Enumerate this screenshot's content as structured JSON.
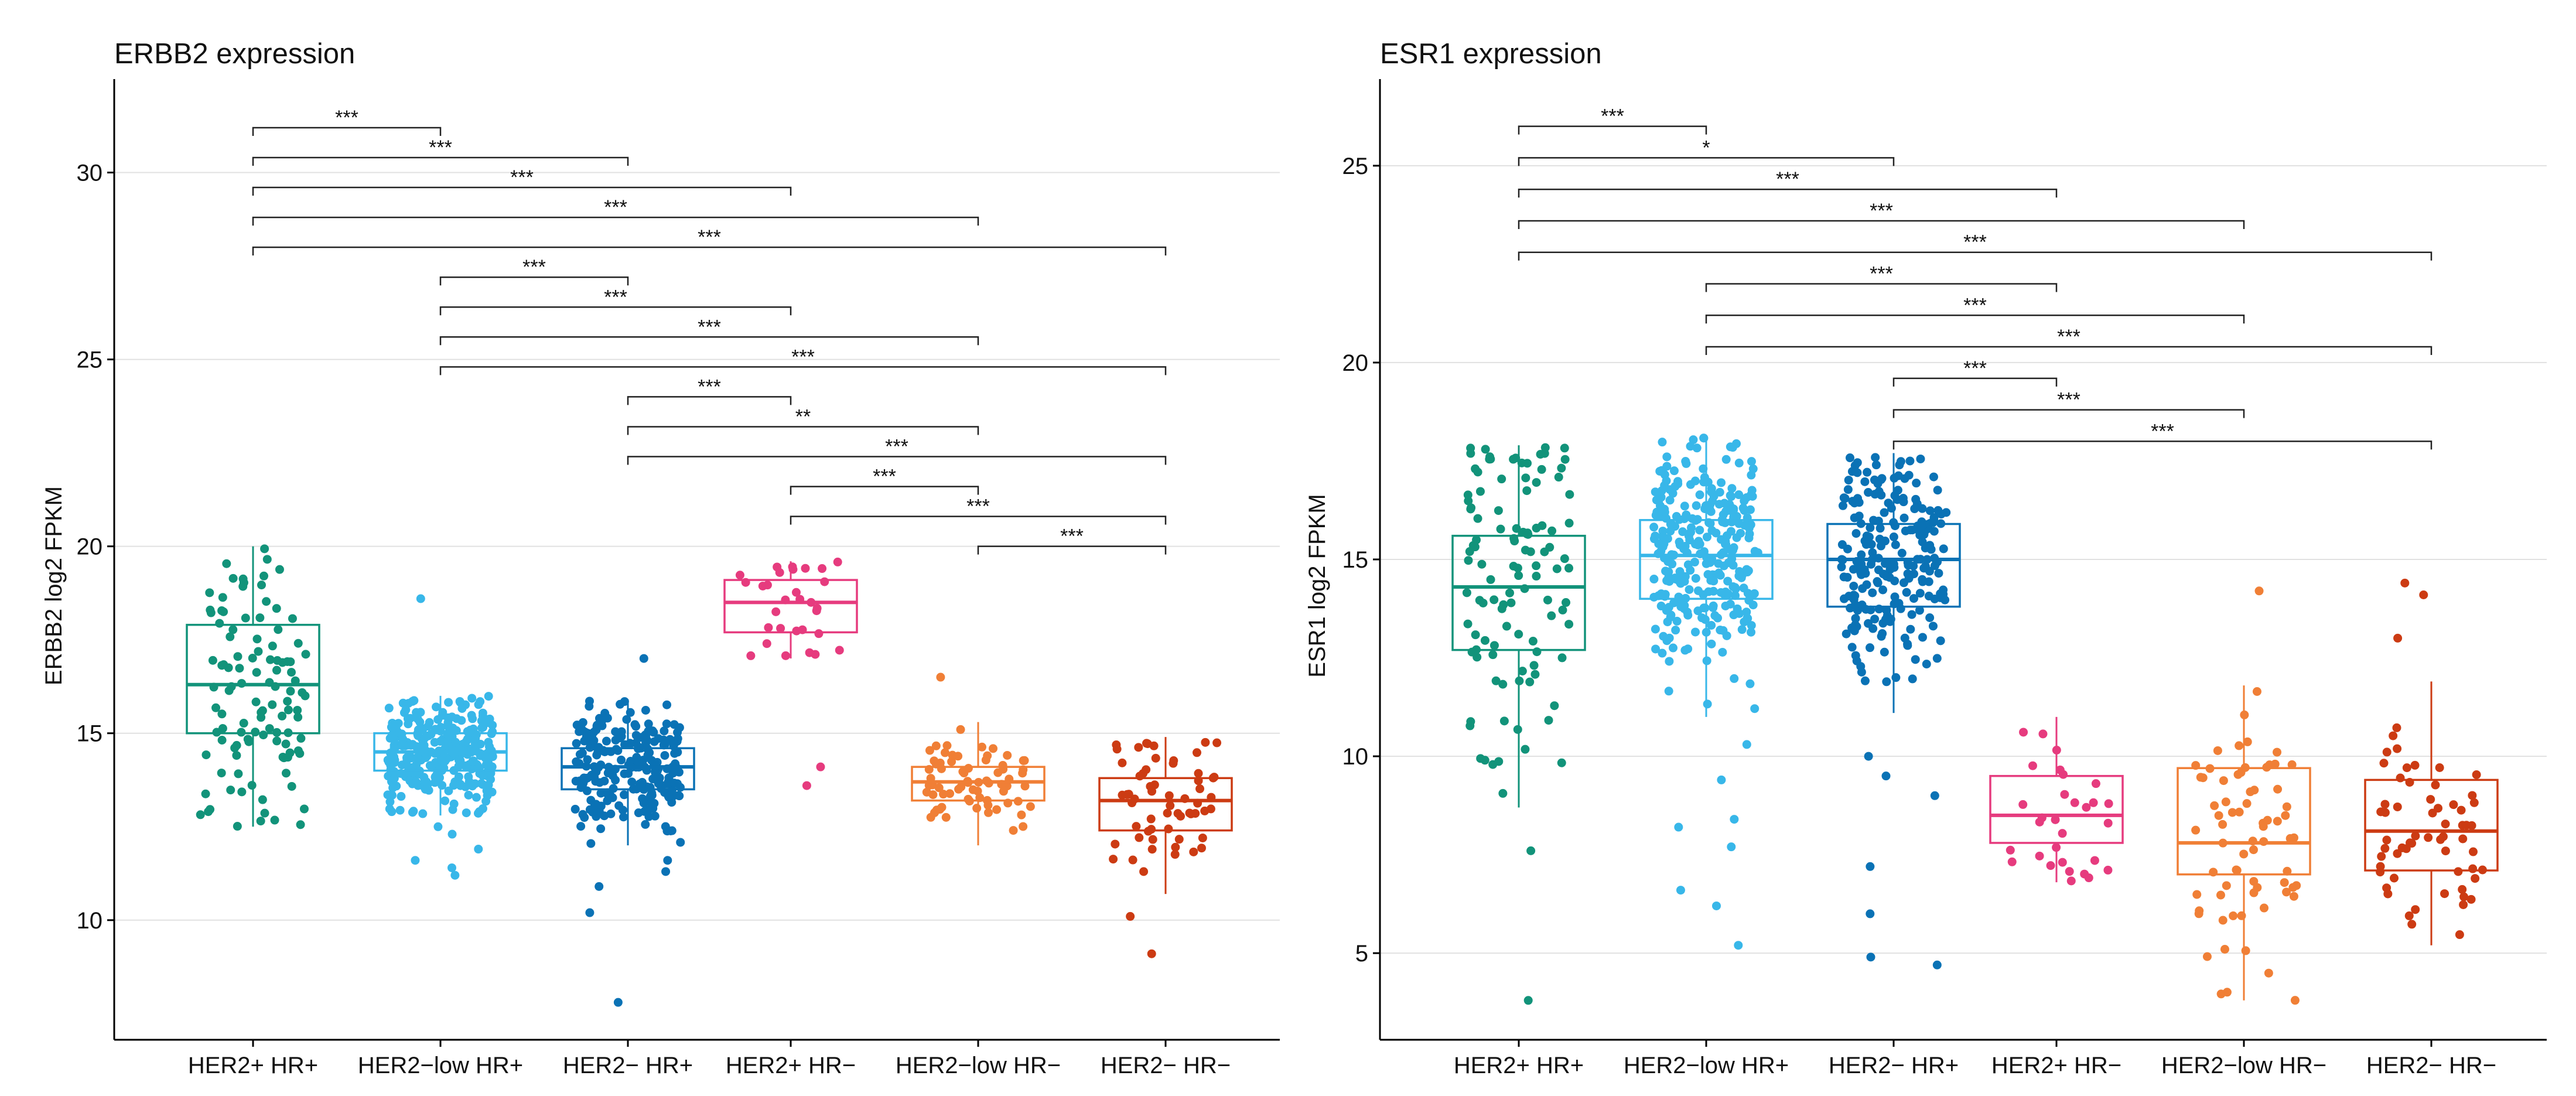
{
  "chart_data": [
    {
      "type": "box",
      "title": "ERBB2 expression",
      "ylabel": "ERBB2 log2 FPKM",
      "ylim": [
        6.8,
        32.5
      ],
      "yticks": [
        10,
        15,
        20,
        25,
        30
      ],
      "categories": [
        "HER2+ HR+",
        "HER2−low HR+",
        "HER2− HR+",
        "HER2+ HR−",
        "HER2−low HR−",
        "HER2− HR−"
      ],
      "colors": [
        "#12937a",
        "#38b7e9",
        "#0a72b5",
        "#e63b7e",
        "#f07f36",
        "#cc3b13"
      ],
      "boxes": [
        {
          "q1": 15.0,
          "median": 16.3,
          "q3": 17.9,
          "whisker_low": 12.5,
          "whisker_high": 20.0,
          "outliers": [],
          "n": 110
        },
        {
          "q1": 14.0,
          "median": 14.5,
          "q3": 15.0,
          "whisker_low": 12.8,
          "whisker_high": 16.0,
          "outliers": [
            18.6,
            12.5,
            12.3,
            11.9,
            11.6,
            11.4,
            11.2
          ],
          "n": 300
        },
        {
          "q1": 13.5,
          "median": 14.1,
          "q3": 14.6,
          "whisker_low": 12.0,
          "whisker_high": 15.9,
          "outliers": [
            17.0,
            11.6,
            11.3,
            10.9,
            10.2,
            7.8
          ],
          "n": 230
        },
        {
          "q1": 17.7,
          "median": 18.5,
          "q3": 19.1,
          "whisker_low": 17.0,
          "whisker_high": 19.6,
          "outliers": [
            14.1,
            13.6
          ],
          "n": 30
        },
        {
          "q1": 13.2,
          "median": 13.7,
          "q3": 14.1,
          "whisker_low": 12.0,
          "whisker_high": 15.3,
          "outliers": [
            16.5
          ],
          "n": 70
        },
        {
          "q1": 12.4,
          "median": 13.2,
          "q3": 13.8,
          "whisker_low": 10.7,
          "whisker_high": 14.9,
          "outliers": [
            10.1,
            9.1
          ],
          "n": 60
        }
      ],
      "comparisons": [
        {
          "from": 0,
          "to": 1,
          "y": 31.2,
          "label": "***"
        },
        {
          "from": 0,
          "to": 2,
          "y": 30.4,
          "label": "***"
        },
        {
          "from": 0,
          "to": 3,
          "y": 29.6,
          "label": "***"
        },
        {
          "from": 0,
          "to": 4,
          "y": 28.8,
          "label": "***"
        },
        {
          "from": 0,
          "to": 5,
          "y": 28.0,
          "label": "***"
        },
        {
          "from": 1,
          "to": 2,
          "y": 27.2,
          "label": "***"
        },
        {
          "from": 1,
          "to": 3,
          "y": 26.4,
          "label": "***"
        },
        {
          "from": 1,
          "to": 4,
          "y": 25.6,
          "label": "***"
        },
        {
          "from": 1,
          "to": 5,
          "y": 24.8,
          "label": "***"
        },
        {
          "from": 2,
          "to": 3,
          "y": 24.0,
          "label": "***"
        },
        {
          "from": 2,
          "to": 4,
          "y": 23.2,
          "label": "**"
        },
        {
          "from": 2,
          "to": 5,
          "y": 22.4,
          "label": "***"
        },
        {
          "from": 3,
          "to": 4,
          "y": 21.6,
          "label": "***"
        },
        {
          "from": 3,
          "to": 5,
          "y": 20.8,
          "label": "***"
        },
        {
          "from": 4,
          "to": 5,
          "y": 20.0,
          "label": "***"
        }
      ]
    },
    {
      "type": "box",
      "title": "ESR1 expression",
      "ylabel": "ESR1 log2 FPKM",
      "ylim": [
        2.8,
        27.2
      ],
      "yticks": [
        5,
        10,
        15,
        20,
        25
      ],
      "categories": [
        "HER2+ HR+",
        "HER2−low HR+",
        "HER2− HR+",
        "HER2+ HR−",
        "HER2−low HR−",
        "HER2− HR−"
      ],
      "colors": [
        "#12937a",
        "#38b7e9",
        "#0a72b5",
        "#e63b7e",
        "#f07f36",
        "#cc3b13"
      ],
      "boxes": [
        {
          "q1": 12.7,
          "median": 14.3,
          "q3": 15.6,
          "whisker_low": 8.7,
          "whisker_high": 17.9,
          "outliers": [
            7.6,
            3.8
          ],
          "n": 110
        },
        {
          "q1": 14.0,
          "median": 15.1,
          "q3": 16.0,
          "whisker_low": 11.0,
          "whisker_high": 18.1,
          "outliers": [
            10.3,
            9.4,
            8.4,
            8.2,
            7.7,
            6.6,
            6.2,
            5.2
          ],
          "n": 300
        },
        {
          "q1": 13.8,
          "median": 15.0,
          "q3": 15.9,
          "whisker_low": 11.1,
          "whisker_high": 17.7,
          "outliers": [
            10.0,
            9.5,
            9.0,
            7.2,
            6.0,
            4.9,
            4.7
          ],
          "n": 230
        },
        {
          "q1": 7.8,
          "median": 8.5,
          "q3": 9.5,
          "whisker_low": 6.8,
          "whisker_high": 11.0,
          "outliers": [],
          "n": 30
        },
        {
          "q1": 7.0,
          "median": 7.8,
          "q3": 9.7,
          "whisker_low": 3.8,
          "whisker_high": 11.8,
          "outliers": [
            14.2
          ],
          "n": 70
        },
        {
          "q1": 7.1,
          "median": 8.1,
          "q3": 9.4,
          "whisker_low": 5.2,
          "whisker_high": 11.9,
          "outliers": [
            14.4,
            14.1,
            13.0
          ],
          "n": 60
        }
      ],
      "comparisons": [
        {
          "from": 0,
          "to": 1,
          "y": 26.0,
          "label": "***"
        },
        {
          "from": 0,
          "to": 2,
          "y": 25.2,
          "label": "*"
        },
        {
          "from": 0,
          "to": 3,
          "y": 24.4,
          "label": "***"
        },
        {
          "from": 0,
          "to": 4,
          "y": 23.6,
          "label": "***"
        },
        {
          "from": 0,
          "to": 5,
          "y": 22.8,
          "label": "***"
        },
        {
          "from": 1,
          "to": 3,
          "y": 22.0,
          "label": "***"
        },
        {
          "from": 1,
          "to": 4,
          "y": 21.2,
          "label": "***"
        },
        {
          "from": 1,
          "to": 5,
          "y": 20.4,
          "label": "***"
        },
        {
          "from": 2,
          "to": 3,
          "y": 19.6,
          "label": "***"
        },
        {
          "from": 2,
          "to": 4,
          "y": 18.8,
          "label": "***"
        },
        {
          "from": 2,
          "to": 5,
          "y": 18.0,
          "label": "***"
        }
      ]
    }
  ]
}
